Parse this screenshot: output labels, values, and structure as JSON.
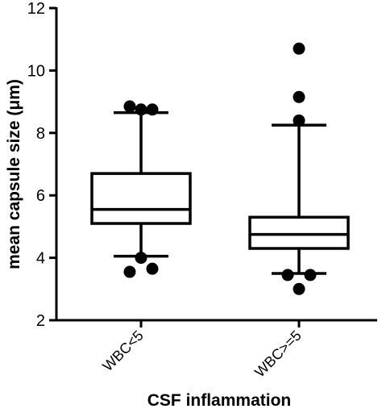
{
  "chart_data": {
    "type": "box",
    "xlabel": "CSF inflammation",
    "ylabel": "mean capsule size (μm)",
    "ylim": [
      2,
      12
    ],
    "yticks": [
      2,
      4,
      6,
      8,
      10,
      12
    ],
    "grid": false,
    "legend": "none",
    "color": "#000000",
    "categories": [
      "WBC<5",
      "WBC>=5"
    ],
    "boxes": [
      {
        "category": "WBC<5",
        "whisker_low": 4.05,
        "q1": 5.1,
        "median": 5.55,
        "q3": 6.7,
        "whisker_high": 8.65,
        "outliers": [
          {
            "y": 3.55,
            "jitter": -1
          },
          {
            "y": 3.65,
            "jitter": 1
          },
          {
            "y": 4.0,
            "jitter": 0
          },
          {
            "y": 8.85,
            "jitter": -1
          },
          {
            "y": 8.75,
            "jitter": 0
          },
          {
            "y": 8.75,
            "jitter": 1
          }
        ]
      },
      {
        "category": "WBC>=5",
        "whisker_low": 3.5,
        "q1": 4.3,
        "median": 4.75,
        "q3": 5.3,
        "whisker_high": 8.25,
        "outliers": [
          {
            "y": 3.0,
            "jitter": 0
          },
          {
            "y": 3.45,
            "jitter": -1
          },
          {
            "y": 3.45,
            "jitter": 1
          },
          {
            "y": 8.4,
            "jitter": 0
          },
          {
            "y": 9.15,
            "jitter": 0
          },
          {
            "y": 10.7,
            "jitter": 0
          }
        ]
      }
    ]
  }
}
